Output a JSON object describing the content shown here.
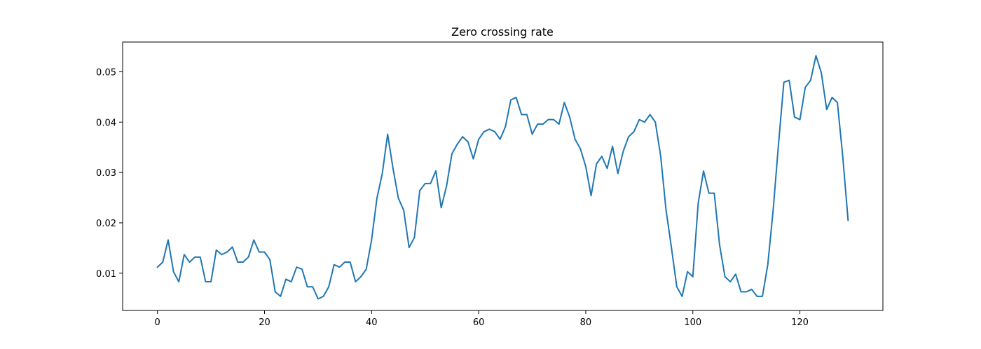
{
  "chart_data": {
    "type": "line",
    "title": "Zero crossing rate",
    "xlabel": "",
    "ylabel": "",
    "xlim": [
      -6.5,
      135.5
    ],
    "ylim": [
      0.0026,
      0.0559
    ],
    "xticks": [
      0,
      20,
      40,
      60,
      80,
      100,
      120
    ],
    "yticks": [
      0.01,
      0.02,
      0.03,
      0.04,
      0.05
    ],
    "xtick_labels": [
      "0",
      "20",
      "40",
      "60",
      "80",
      "100",
      "120"
    ],
    "ytick_labels": [
      "0.01",
      "0.02",
      "0.03",
      "0.04",
      "0.05"
    ],
    "grid": false,
    "legend": "none",
    "series": [
      {
        "color": "#1f77b4",
        "x": [
          0,
          1,
          2,
          3,
          4,
          5,
          6,
          7,
          8,
          9,
          10,
          11,
          12,
          13,
          14,
          15,
          16,
          17,
          18,
          19,
          20,
          21,
          22,
          23,
          24,
          25,
          26,
          27,
          28,
          29,
          30,
          31,
          32,
          33,
          34,
          35,
          36,
          37,
          38,
          39,
          40,
          41,
          42,
          43,
          44,
          45,
          46,
          47,
          48,
          49,
          50,
          51,
          52,
          53,
          54,
          55,
          56,
          57,
          58,
          59,
          60,
          61,
          62,
          63,
          64,
          65,
          66,
          67,
          68,
          69,
          70,
          71,
          72,
          73,
          74,
          75,
          76,
          77,
          78,
          79,
          80,
          81,
          82,
          83,
          84,
          85,
          86,
          87,
          88,
          89,
          90,
          91,
          92,
          93,
          94,
          95,
          96,
          97,
          98,
          99,
          100,
          101,
          102,
          103,
          104,
          105,
          106,
          107,
          108,
          109,
          110,
          111,
          112,
          113,
          114,
          115,
          116,
          117,
          118,
          119,
          120,
          121,
          122,
          123,
          124,
          125,
          126,
          127,
          128,
          129
        ],
        "values": [
          0.0112,
          0.0122,
          0.0166,
          0.0103,
          0.0083,
          0.0137,
          0.0122,
          0.0132,
          0.0132,
          0.0083,
          0.0083,
          0.0146,
          0.0137,
          0.0142,
          0.0152,
          0.0122,
          0.0122,
          0.0132,
          0.0166,
          0.0142,
          0.0142,
          0.0127,
          0.0063,
          0.0054,
          0.0088,
          0.0083,
          0.0112,
          0.0108,
          0.0073,
          0.0073,
          0.0049,
          0.0054,
          0.0073,
          0.0117,
          0.0112,
          0.0122,
          0.0122,
          0.0083,
          0.0093,
          0.0108,
          0.0166,
          0.0249,
          0.0298,
          0.0376,
          0.0308,
          0.0249,
          0.0225,
          0.0151,
          0.0171,
          0.0264,
          0.0278,
          0.0278,
          0.0303,
          0.023,
          0.0273,
          0.0337,
          0.0356,
          0.0371,
          0.0361,
          0.0327,
          0.0366,
          0.0381,
          0.0386,
          0.0381,
          0.0366,
          0.0391,
          0.0444,
          0.0449,
          0.0415,
          0.0415,
          0.0376,
          0.0396,
          0.0396,
          0.0405,
          0.0405,
          0.0396,
          0.0439,
          0.041,
          0.0366,
          0.0347,
          0.0312,
          0.0254,
          0.0317,
          0.0332,
          0.0308,
          0.0352,
          0.0298,
          0.0342,
          0.0371,
          0.0381,
          0.0405,
          0.04,
          0.0415,
          0.04,
          0.0332,
          0.0225,
          0.0151,
          0.0073,
          0.0054,
          0.0103,
          0.0093,
          0.0239,
          0.0303,
          0.0259,
          0.0259,
          0.0156,
          0.0093,
          0.0083,
          0.0098,
          0.0063,
          0.0063,
          0.0068,
          0.0054,
          0.0054,
          0.0117,
          0.0225,
          0.0356,
          0.0479,
          0.0483,
          0.041,
          0.0405,
          0.0469,
          0.0483,
          0.0532,
          0.0498,
          0.0425,
          0.0449,
          0.0439,
          0.0332,
          0.0205
        ]
      }
    ]
  }
}
